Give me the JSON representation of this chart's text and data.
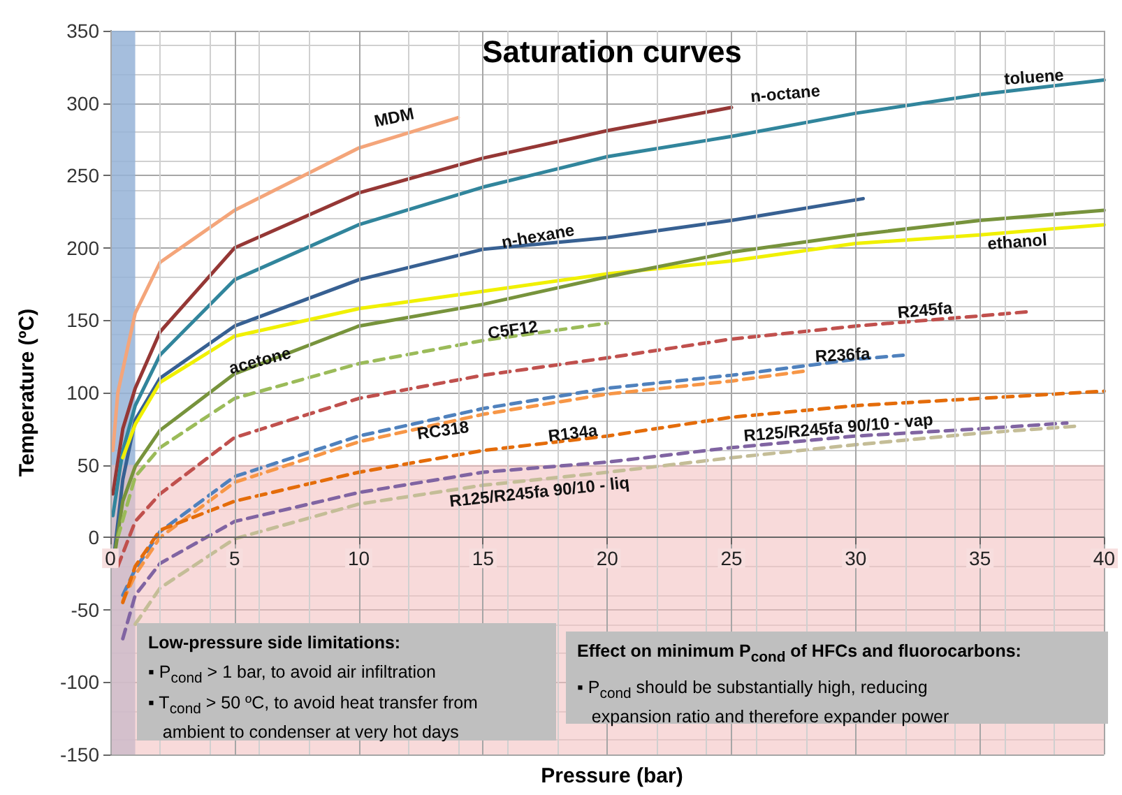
{
  "chart_data": {
    "type": "line",
    "title": "Saturation curves",
    "xlabel": "Pressure (bar)",
    "ylabel": "Temperature (ºC)",
    "xlim": [
      0,
      40
    ],
    "xticks": [
      0,
      5,
      10,
      15,
      20,
      25,
      30,
      35,
      40
    ],
    "ylim": [
      -150,
      350
    ],
    "yticks": [
      -150,
      -100,
      -50,
      0,
      50,
      100,
      150,
      200,
      250,
      300,
      350
    ],
    "grid": true,
    "legend": false,
    "marker": "none",
    "line_style": "solid",
    "series": [
      {
        "name": "MDM",
        "color": "#f4a57a",
        "x": [
          0.1,
          0.3,
          1,
          2,
          5,
          10,
          14
        ],
        "values": [
          60,
          100,
          155,
          190,
          226,
          269,
          290
        ]
      },
      {
        "name": "n-octane",
        "color": "#953735",
        "x": [
          0.1,
          0.5,
          1,
          2,
          5,
          10,
          15,
          20,
          25
        ],
        "values": [
          30,
          75,
          103,
          142,
          200,
          238,
          262,
          281,
          297
        ]
      },
      {
        "name": "toluene",
        "color": "#31859c",
        "x": [
          0.1,
          0.5,
          1,
          2,
          5,
          10,
          15,
          20,
          25,
          30,
          35,
          40
        ],
        "values": [
          15,
          60,
          91,
          126,
          178,
          216,
          242,
          263,
          277,
          293,
          306,
          316
        ]
      },
      {
        "name": "n-hexane",
        "color": "#376092",
        "x": [
          0.1,
          0.5,
          1,
          2,
          5,
          10,
          15,
          20,
          25,
          30.3
        ],
        "values": [
          -20,
          40,
          81,
          110,
          146,
          178,
          199,
          207,
          219,
          234
        ]
      },
      {
        "name": "ethanol",
        "color": "#f0f000",
        "x": [
          0.5,
          1,
          2,
          5,
          10,
          15,
          20,
          25,
          30,
          35,
          40
        ],
        "values": [
          55,
          78,
          107,
          139,
          158,
          170,
          182,
          191,
          203,
          209,
          216
        ]
      },
      {
        "name": "acetone",
        "color": "#77933c",
        "x": [
          0.1,
          0.5,
          1,
          2,
          5,
          10,
          15,
          20,
          25,
          30,
          35,
          40
        ],
        "values": [
          -20,
          25,
          49,
          74,
          113,
          146,
          161,
          180,
          197,
          209,
          219,
          226
        ]
      },
      {
        "name": "C5F12",
        "color": "#9bbb59",
        "line_style": "dashed",
        "x": [
          0.3,
          1,
          2,
          5,
          10,
          15,
          20
        ],
        "values": [
          0,
          42,
          62,
          96,
          120,
          136,
          148
        ]
      },
      {
        "name": "R245fa",
        "color": "#c0504d",
        "line_style": "dashed",
        "x": [
          0.3,
          1,
          2,
          5,
          10,
          15,
          20,
          25,
          30,
          35,
          37
        ],
        "values": [
          -20,
          11,
          30,
          69,
          96,
          112,
          124,
          137,
          146,
          153,
          156
        ]
      },
      {
        "name": "R236fa",
        "color": "#4f81bd",
        "line_style": "dashed",
        "x": [
          0.5,
          1,
          2,
          5,
          10,
          15,
          20,
          25,
          30,
          32
        ],
        "values": [
          -40,
          -22,
          4,
          42,
          70,
          89,
          103,
          112,
          123,
          126
        ]
      },
      {
        "name": "RC318",
        "color": "#f79646",
        "line_style": "dashed",
        "x": [
          0.5,
          1,
          2,
          5,
          10,
          15,
          20,
          25,
          28
        ],
        "values": [
          -44,
          -26,
          0,
          38,
          66,
          85,
          99,
          108,
          115
        ]
      },
      {
        "name": "R134a",
        "color": "#e46c0a",
        "line_style": "dashed",
        "x": [
          0.5,
          1,
          2,
          5,
          10,
          15,
          20,
          25,
          30,
          35,
          40
        ],
        "values": [
          -45,
          -20,
          5,
          25,
          45,
          60,
          70,
          83,
          91,
          96,
          101
        ]
      },
      {
        "name": "R125/R245fa 90/10 - vap",
        "color": "#8064a2",
        "line_style": "dashed",
        "x": [
          0.5,
          1,
          2,
          5,
          10,
          15,
          20,
          25,
          30,
          35,
          38.5
        ],
        "values": [
          -70,
          -40,
          -18,
          11,
          31,
          45,
          52,
          62,
          70,
          75,
          79
        ]
      },
      {
        "name": "R125/R245fa 90/10 - liq",
        "color": "#c4bd97",
        "line_style": "dashed",
        "x": [
          1,
          2,
          5,
          10,
          15,
          20,
          25,
          30,
          35,
          39
        ],
        "values": [
          -60,
          -35,
          -1,
          23,
          36,
          45,
          55,
          64,
          72,
          77
        ]
      }
    ],
    "bands": [
      {
        "axis": "x",
        "from": 0,
        "to": 1,
        "color": "#95b3d7"
      },
      {
        "axis": "y",
        "from": -150,
        "to": 50,
        "color": "#f4c2c2"
      }
    ],
    "annotations": [
      "Low-pressure side limitations:\n▪ P$_{cond}$ > 1 bar, to avoid air infiltration\n▪ T$_{cond}$ > 50 ºC, to avoid heat transfer from\n   ambient to condenser at very hot days",
      "Effect on minimum P$_{cond}$ of HFCs and fluorocarbons:\n▪ P$_{cond}$ should be substantially high, reducing\n   expansion ratio and therefore expander power"
    ]
  }
}
